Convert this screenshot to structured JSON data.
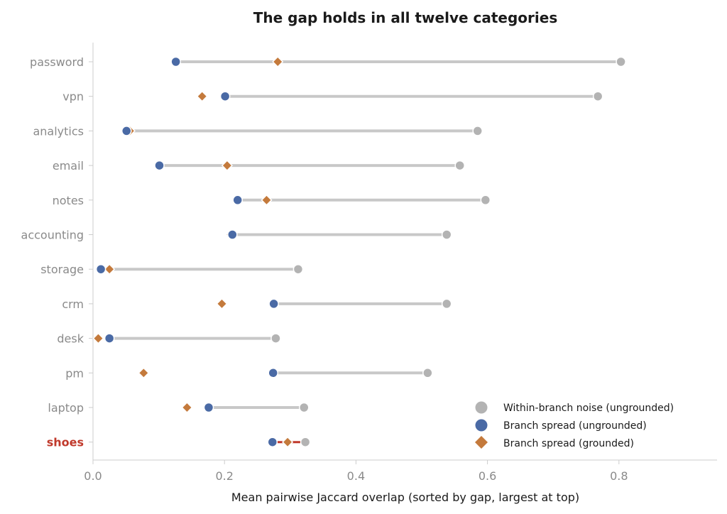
{
  "chart_data": {
    "type": "scatter",
    "title": "The gap holds in all twelve categories",
    "xlabel": "Mean pairwise Jaccard overlap (sorted by gap, largest at top)",
    "ylabel": "",
    "xlim": [
      0.0,
      0.95
    ],
    "xticks": [
      "0.0",
      "0.2",
      "0.4",
      "0.6",
      "0.8"
    ],
    "grid": false,
    "legend_position": "bottom-right",
    "highlight_category": "shoes",
    "categories": [
      "password",
      "vpn",
      "analytics",
      "email",
      "notes",
      "accounting",
      "storage",
      "crm",
      "desk",
      "pm",
      "laptop",
      "shoes"
    ],
    "series": [
      {
        "name": "Within-branch noise (ungrounded)",
        "marker": "circle",
        "color": "#b3b3b3",
        "values": [
          0.803,
          0.768,
          0.585,
          0.558,
          0.597,
          0.538,
          0.312,
          0.538,
          0.278,
          0.509,
          0.321,
          0.323
        ]
      },
      {
        "name": "Branch spread (ungrounded)",
        "marker": "circle",
        "color": "#4a6aa5",
        "values": [
          0.126,
          0.201,
          0.051,
          0.101,
          0.22,
          0.212,
          0.012,
          0.275,
          0.025,
          0.274,
          0.176,
          0.273
        ]
      },
      {
        "name": "Branch spread (grounded)",
        "marker": "diamond",
        "color": "#c47a3c",
        "values": [
          0.281,
          0.166,
          0.056,
          0.204,
          0.264,
          0.21,
          0.025,
          0.196,
          0.008,
          0.077,
          0.143,
          0.296
        ]
      }
    ],
    "connector_color": "#c8c8c8",
    "highlight_connector_color": "#c0392b"
  }
}
